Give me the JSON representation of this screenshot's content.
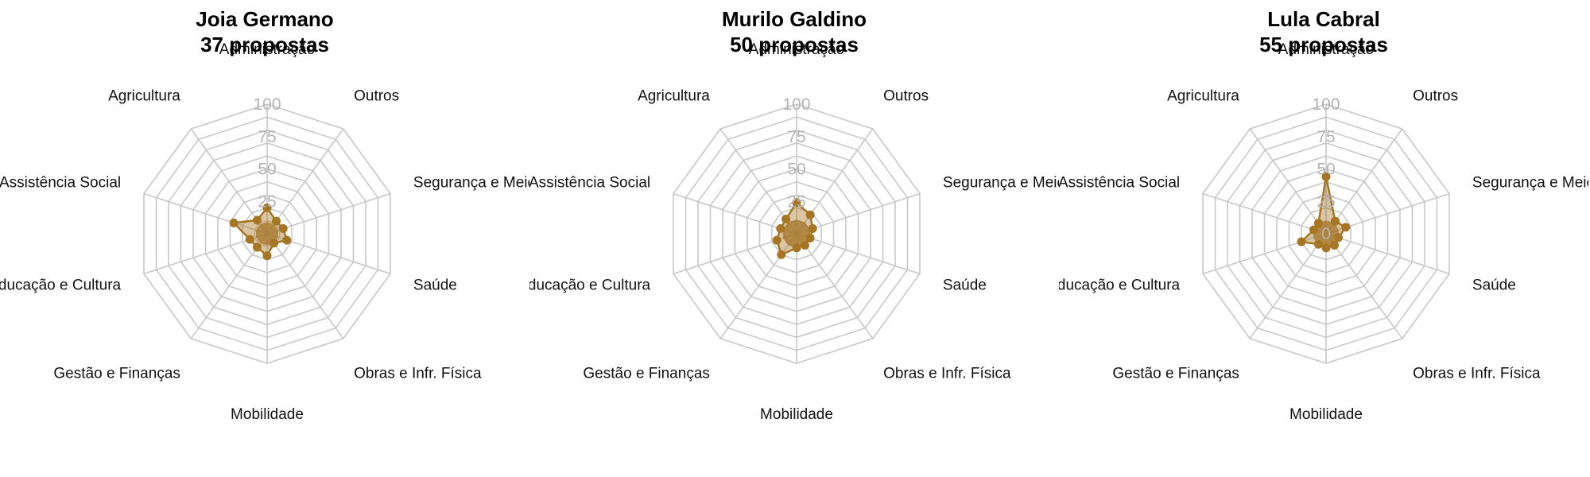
{
  "chart_data": [
    {
      "type": "radar",
      "title": "Joia Germano",
      "subtitle": "37 propostas",
      "categories": [
        "Administração",
        "Outros",
        "Segurança e Meio Amb.",
        "Saúde",
        "Obras e Infr. Física",
        "Mobilidade",
        "Gestão e Finanças",
        "Educação e Cultura",
        "Assistência Social",
        "Agricultura"
      ],
      "values": [
        20,
        12,
        13,
        16,
        9,
        17,
        13,
        14,
        27,
        13
      ],
      "rlim": [
        0,
        100
      ],
      "ticks": [
        "25",
        "50",
        "75",
        "100"
      ],
      "grid": true,
      "color": "#A67625"
    },
    {
      "type": "radar",
      "title": "Murilo Galdino",
      "subtitle": "50 propostas",
      "categories": [
        "Administração",
        "Outros",
        "Segurança e Meio Amb.",
        "Saúde",
        "Obras e Infr. Física",
        "Mobilidade",
        "Gestão e Finanças",
        "Educação e Cultura",
        "Assistência Social",
        "Agricultura"
      ],
      "values": [
        24,
        18,
        13,
        11,
        11,
        11,
        20,
        16,
        13,
        14
      ],
      "rlim": [
        0,
        100
      ],
      "ticks": [
        "25",
        "50",
        "75",
        "100"
      ],
      "grid": true,
      "color": "#A67625"
    },
    {
      "type": "radar",
      "title": "Lula Cabral",
      "subtitle": "55 propostas",
      "categories": [
        "Administração",
        "Outros",
        "Segurança e Meio Amb.",
        "Saúde",
        "Obras e Infr. Física",
        "Mobilidade",
        "Gestão e Finanças",
        "Educação e Cultura",
        "Assistência Social",
        "Agricultura"
      ],
      "values": [
        44,
        12,
        16,
        10,
        11,
        11,
        10,
        20,
        10,
        10
      ],
      "rlim": [
        0,
        100
      ],
      "ticks": [
        "0",
        "25",
        "50",
        "75",
        "100"
      ],
      "grid": true,
      "color": "#A67625"
    }
  ]
}
